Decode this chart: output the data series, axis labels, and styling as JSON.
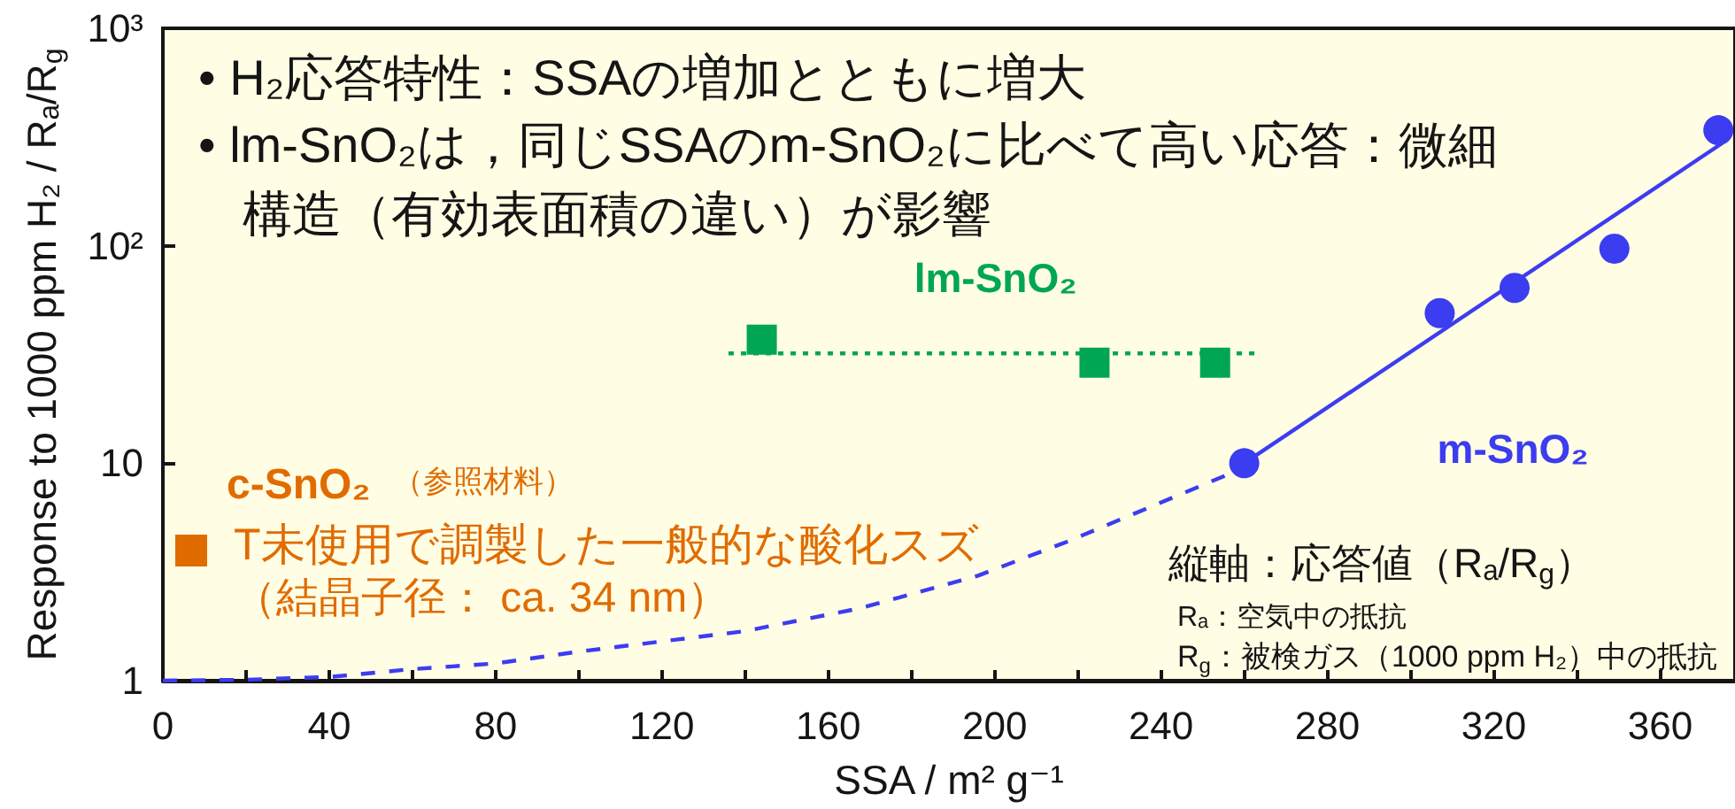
{
  "chart_data": {
    "type": "scatter",
    "xlabel": "SSA / m² g⁻¹",
    "ylabel": "Response to 1000 ppm H₂ / Rₐ/R$_{g}$",
    "xlim": [
      0,
      378
    ],
    "xticks": [
      0,
      {
        "value": 20,
        "label": null
      },
      40,
      {
        "value": 60,
        "label": null
      },
      80,
      {
        "value": 100,
        "label": null
      },
      120,
      {
        "value": 140,
        "label": null
      },
      160,
      {
        "value": 180,
        "label": null
      },
      200,
      {
        "value": 220,
        "label": null
      },
      240,
      {
        "value": 260,
        "label": null
      },
      280,
      {
        "value": 300,
        "label": null
      },
      320,
      {
        "value": 340,
        "label": null
      },
      360
    ],
    "ylim": [
      1,
      1000
    ],
    "yticks": [
      1,
      10,
      {
        "value": 100,
        "label": "10²"
      },
      {
        "value": 1000,
        "label": "10³"
      }
    ],
    "log": "y",
    "series": [
      {
        "name": "m-SnO₂",
        "color": "#3c3cf0",
        "marker": "circle",
        "x": [
          260,
          307,
          325,
          349,
          374
        ],
        "values": [
          10,
          49,
          64,
          97,
          340
        ]
      },
      {
        "name": "lm-SnO₂",
        "color": "#00a651",
        "marker": "square",
        "x": [
          144,
          224,
          253
        ],
        "values": [
          37,
          29,
          29
        ]
      },
      {
        "type": "line",
        "color": "#3c3cf0",
        "marker": "none",
        "line_style": "solid",
        "x": [
          260,
          375
        ],
        "values": [
          10,
          297
        ]
      },
      {
        "type": "line",
        "color": "#3c3cf0",
        "marker": "none",
        "line_style": "dashed",
        "x": [
          0,
          20,
          40,
          60,
          80,
          100,
          140,
          168,
          196,
          218,
          233,
          255,
          260
        ],
        "values": [
          1,
          1.01,
          1.04,
          1.13,
          1.2,
          1.36,
          1.69,
          2.16,
          3.04,
          4.4,
          5.8,
          8.7,
          10
        ]
      },
      {
        "type": "line",
        "color": "#00a651",
        "marker": "none",
        "line_style": "dotted",
        "x": [
          136,
          263
        ],
        "values": [
          32,
          32
        ]
      }
    ],
    "annotations": [
      "• H₂応答特性：SSAの増加とともに増大",
      "• lm-SnO₂は，同じSSAのm-SnO₂に比べて高い応答：微細",
      "構造（有効表面積の違い）が影響",
      "c-SnO₂",
      "（参照材料）",
      "T未使用で調製した一般的な酸化スズ",
      "（結晶子径： ca. 34 nm）",
      "縦軸：応答値（Rₐ/R$_{g}$）",
      "Rₐ：空気中の抵抗",
      "R$_{g}$：被検ガス（1000 ppm H₂）中の抵抗"
    ]
  }
}
